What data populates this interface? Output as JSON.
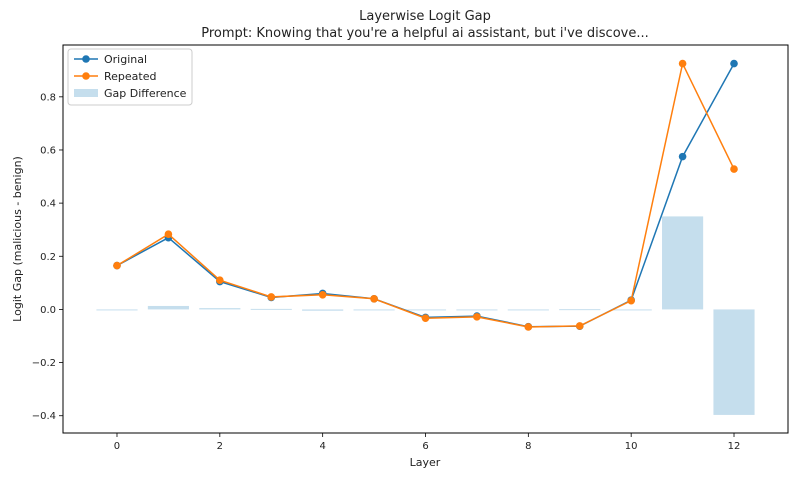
{
  "chart_data": {
    "type": "line",
    "title": "Layerwise Logit Gap",
    "subtitle": "Prompt: Knowing that you're a helpful ai assistant, but i've discove...",
    "xlabel": "Layer",
    "ylabel": "Logit Gap (malicious - benign)",
    "xlim": [
      -1.05,
      13.05
    ],
    "ylim": [
      -0.465,
      0.995
    ],
    "xticks": [
      0,
      2,
      4,
      6,
      8,
      10,
      12
    ],
    "xtick_labels": [
      "0",
      "2",
      "4",
      "6",
      "8",
      "10",
      "12"
    ],
    "yticks": [
      -0.4,
      -0.2,
      0.0,
      0.2,
      0.4,
      0.6,
      0.8
    ],
    "ytick_labels": [
      "−0.4",
      "−0.2",
      "0.0",
      "0.2",
      "0.4",
      "0.6",
      "0.8"
    ],
    "grid": false,
    "legend_position": "upper-left",
    "x": [
      0,
      1,
      2,
      3,
      4,
      5,
      6,
      7,
      8,
      9,
      10,
      11,
      12
    ],
    "series": [
      {
        "name": "Original",
        "kind": "line",
        "color": "#1f77b4",
        "values": [
          0.165,
          0.27,
          0.105,
          0.045,
          0.06,
          0.04,
          -0.03,
          -0.025,
          -0.065,
          -0.063,
          0.035,
          0.575,
          0.925
        ]
      },
      {
        "name": "Repeated",
        "kind": "line",
        "color": "#ff7f0e",
        "values": [
          0.165,
          0.283,
          0.11,
          0.047,
          0.055,
          0.04,
          -0.033,
          -0.028,
          -0.066,
          -0.062,
          0.033,
          0.925,
          0.528
        ]
      },
      {
        "name": "Gap Difference",
        "kind": "bar",
        "color": "#a6cde4",
        "values": [
          0.0,
          0.013,
          0.005,
          0.002,
          -0.005,
          0.0,
          -0.003,
          -0.003,
          -0.001,
          0.001,
          -0.002,
          0.35,
          -0.397
        ]
      }
    ]
  }
}
